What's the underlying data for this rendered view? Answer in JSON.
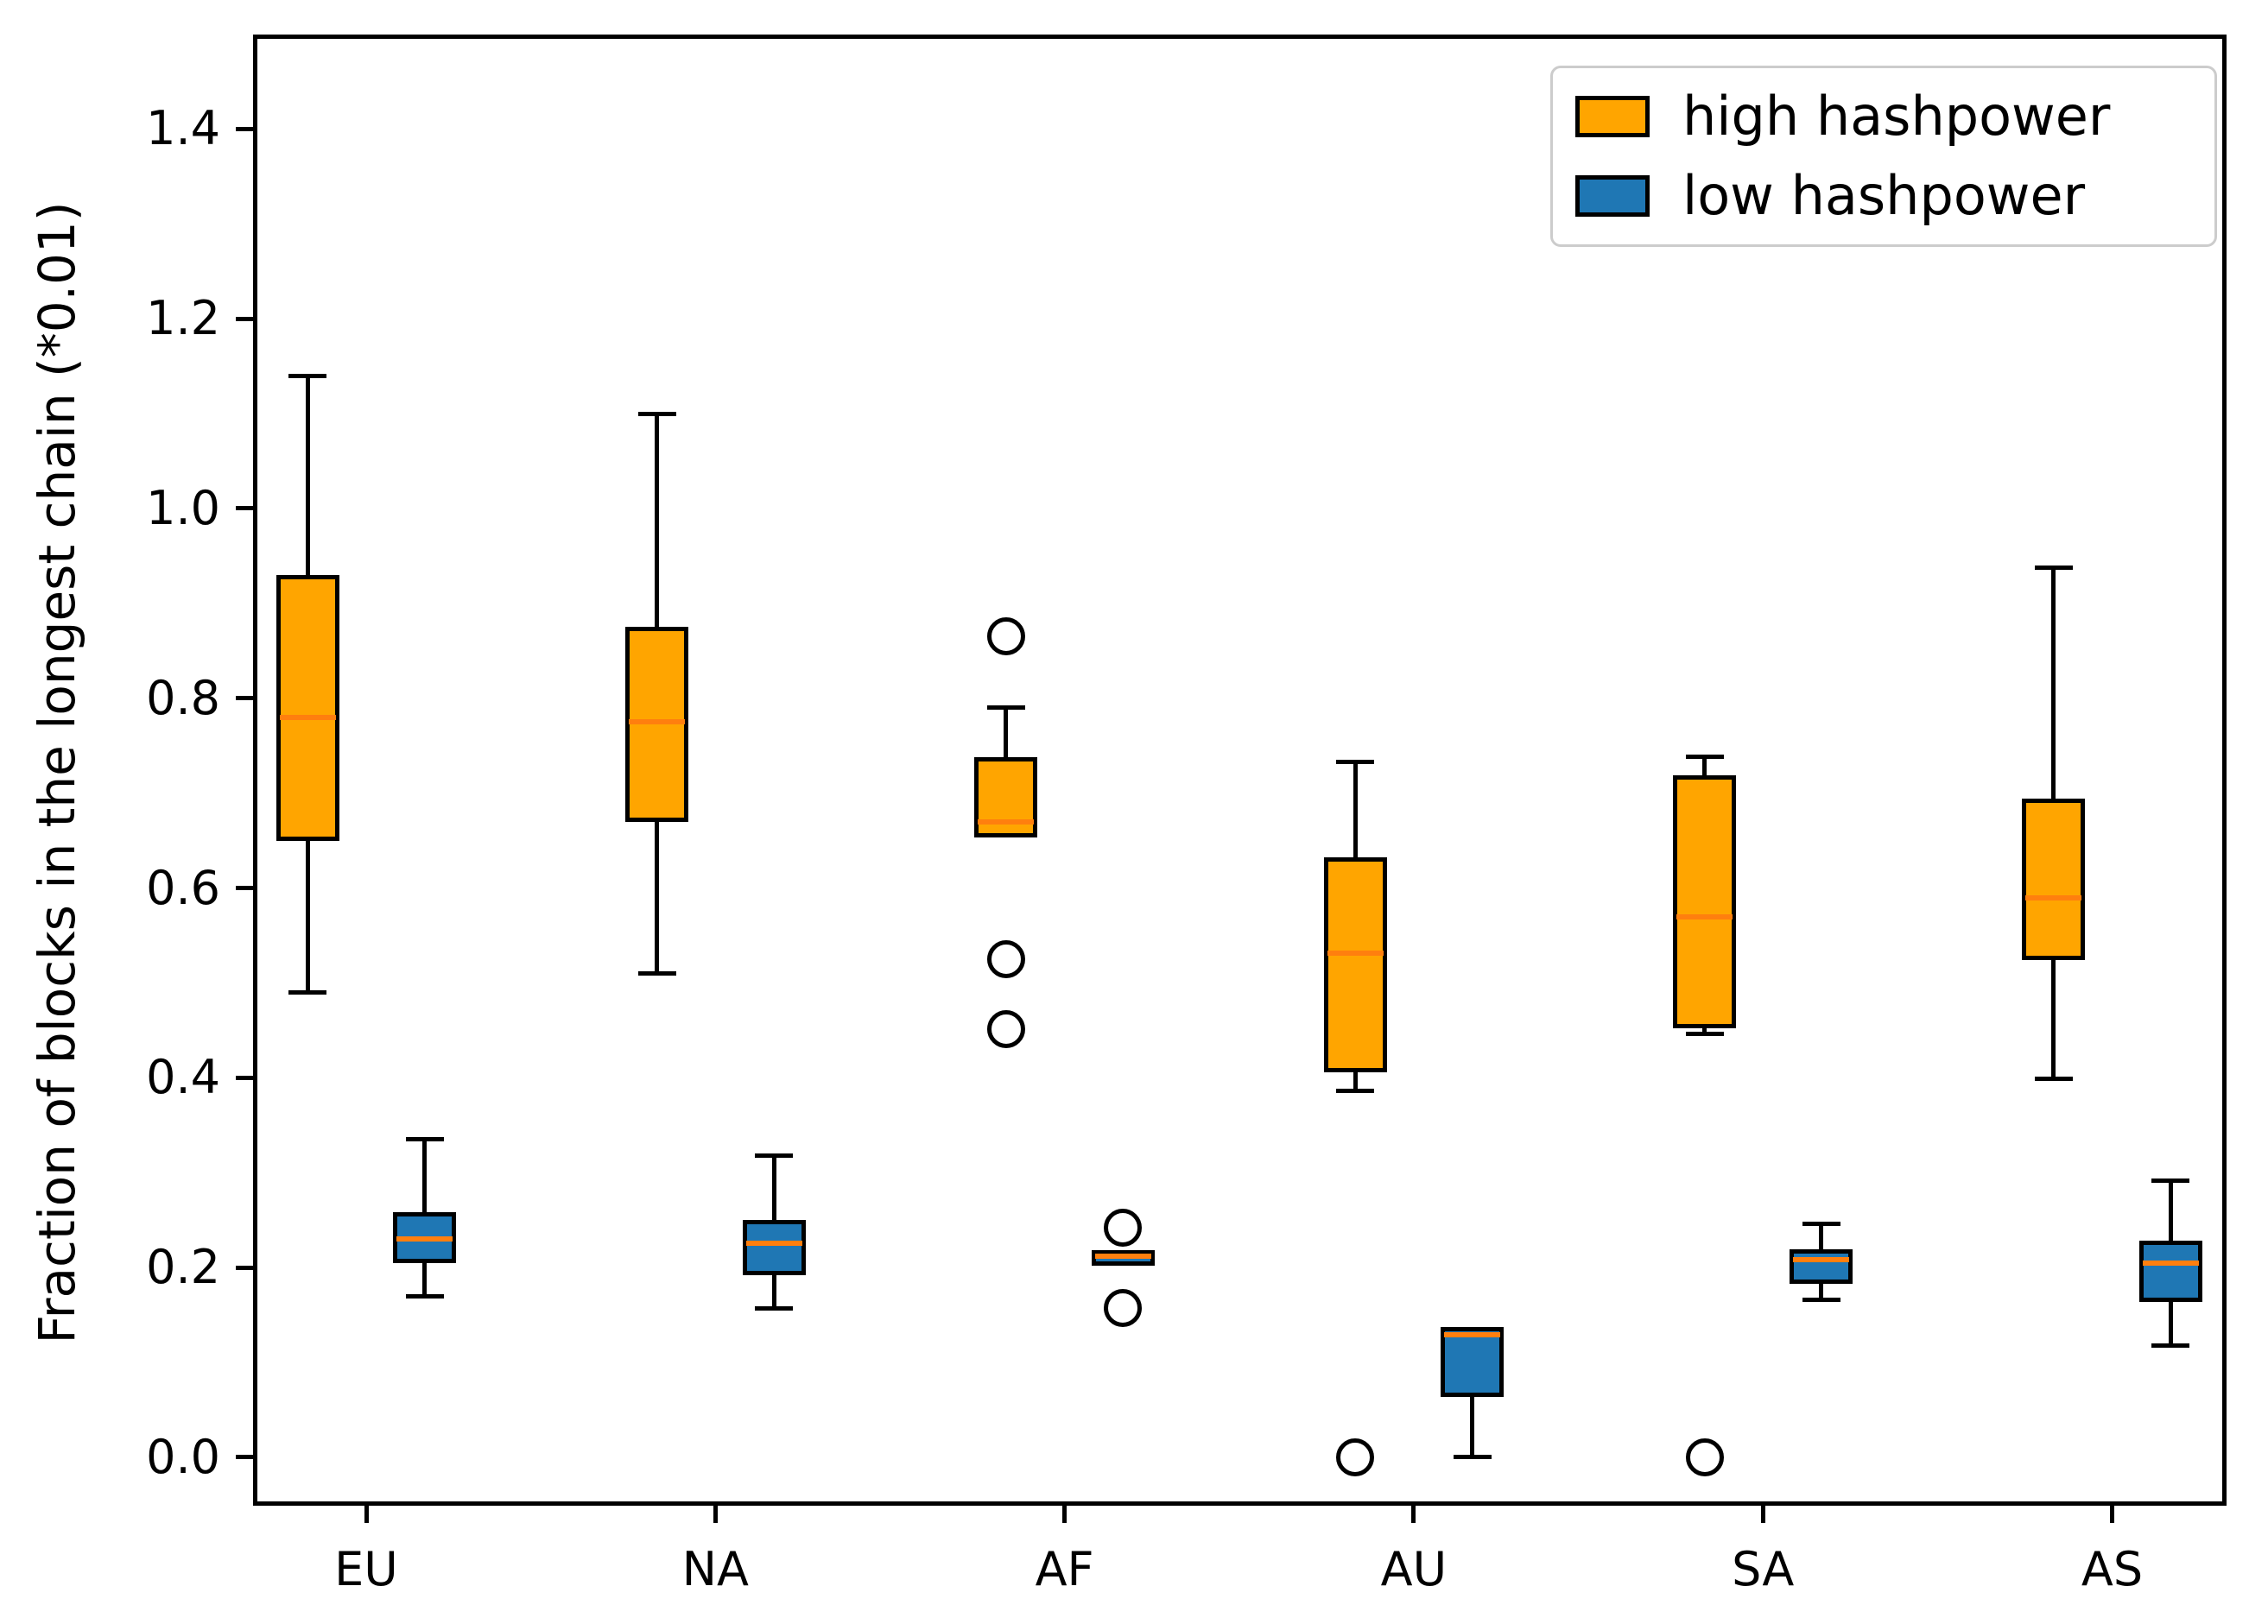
{
  "chart_data": {
    "type": "boxplot",
    "title": "",
    "xlabel": "",
    "ylabel": "Fraction of blocks in the longest chain (*0.01)",
    "categories": [
      "EU",
      "NA",
      "AF",
      "AU",
      "SA",
      "AS"
    ],
    "yticks": [
      "0.0",
      "0.2",
      "0.4",
      "0.6",
      "0.8",
      "1.0",
      "1.2",
      "1.4"
    ],
    "ytick_values": [
      0.0,
      0.2,
      0.4,
      0.6,
      0.8,
      1.0,
      1.2,
      1.4
    ],
    "ylim": [
      -0.051,
      1.4995
    ],
    "grid": "off",
    "legend_position": "upper right",
    "colors": {
      "high_fill": "#ffa500",
      "low_fill": "#1f77b4",
      "median_line": "#ff7f0e",
      "box_edge": "#000000",
      "outlier_edge": "#000000"
    },
    "series": [
      {
        "name": "high hashpower",
        "color": "#ffa500",
        "boxes": [
          {
            "category": "EU",
            "whislo": 0.49,
            "q1": 0.65,
            "med": 0.78,
            "q3": 0.93,
            "whishi": 1.14,
            "outliers": []
          },
          {
            "category": "NA",
            "whislo": 0.51,
            "q1": 0.67,
            "med": 0.775,
            "q3": 0.875,
            "whishi": 1.1,
            "outliers": []
          },
          {
            "category": "AF",
            "whislo": 0.653,
            "q1": 0.653,
            "med": 0.67,
            "q3": 0.738,
            "whishi": 0.79,
            "outliers": [
              0.865,
              0.525,
              0.451
            ]
          },
          {
            "category": "AU",
            "whislo": 0.386,
            "q1": 0.406,
            "med": 0.531,
            "q3": 0.632,
            "whishi": 0.733,
            "outliers": [
              0.0
            ]
          },
          {
            "category": "SA",
            "whislo": 0.446,
            "q1": 0.452,
            "med": 0.57,
            "q3": 0.719,
            "whishi": 0.738,
            "outliers": [
              0.0
            ]
          },
          {
            "category": "AS",
            "whislo": 0.399,
            "q1": 0.524,
            "med": 0.59,
            "q3": 0.694,
            "whishi": 0.938,
            "outliers": []
          }
        ]
      },
      {
        "name": "low hashpower",
        "color": "#1f77b4",
        "boxes": [
          {
            "category": "EU",
            "whislo": 0.17,
            "q1": 0.205,
            "med": 0.23,
            "q3": 0.258,
            "whishi": 0.335,
            "outliers": []
          },
          {
            "category": "NA",
            "whislo": 0.157,
            "q1": 0.192,
            "med": 0.226,
            "q3": 0.25,
            "whishi": 0.318,
            "outliers": []
          },
          {
            "category": "AF",
            "whislo": 0.202,
            "q1": 0.202,
            "med": 0.212,
            "q3": 0.218,
            "whishi": 0.218,
            "outliers": [
              0.242,
              0.157
            ]
          },
          {
            "category": "AU",
            "whislo": 0.0,
            "q1": 0.064,
            "med": 0.129,
            "q3": 0.137,
            "whishi": 0.137,
            "outliers": []
          },
          {
            "category": "SA",
            "whislo": 0.166,
            "q1": 0.183,
            "med": 0.208,
            "q3": 0.219,
            "whishi": 0.246,
            "outliers": []
          },
          {
            "category": "AS",
            "whislo": 0.118,
            "q1": 0.164,
            "med": 0.205,
            "q3": 0.228,
            "whishi": 0.292,
            "outliers": []
          }
        ]
      }
    ],
    "legend": {
      "items": [
        {
          "label": "high hashpower",
          "color": "#ffa500"
        },
        {
          "label": "low hashpower",
          "color": "#1f77b4"
        }
      ]
    }
  }
}
